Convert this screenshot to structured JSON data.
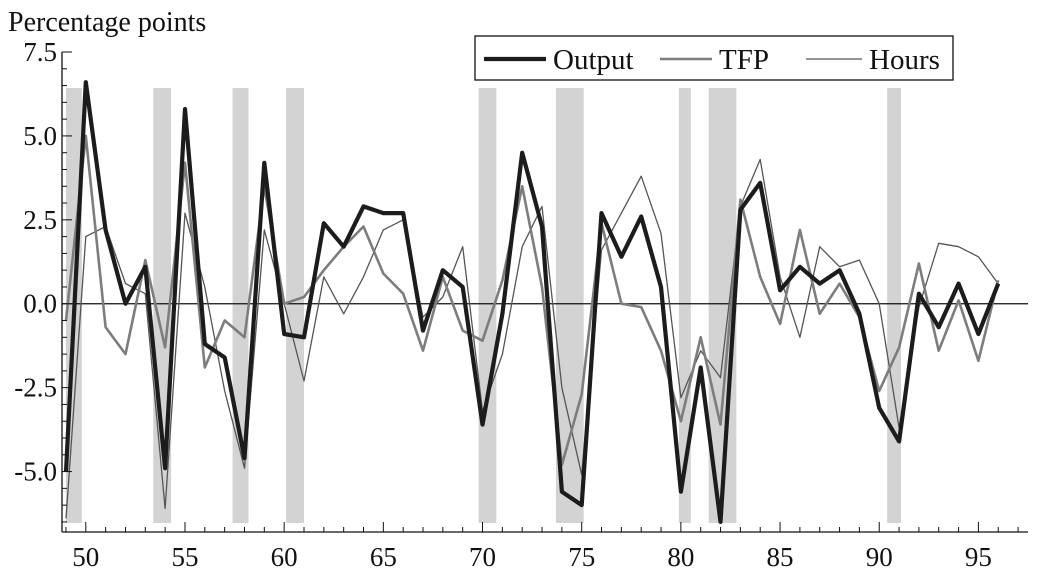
{
  "chart_data": {
    "type": "line",
    "ylabel": "Percentage points",
    "xlim": [
      1948.8,
      1997.5
    ],
    "ylim": [
      -6.8,
      7.5
    ],
    "y_ticks": [
      7.5,
      5.0,
      2.5,
      0.0,
      -2.5,
      -5.0
    ],
    "y_tick_labels": [
      "7.5",
      "5.0",
      "2.5",
      "0.0",
      "-2.5",
      "-5.0"
    ],
    "x_ticks": [
      1950,
      1955,
      1960,
      1965,
      1970,
      1975,
      1980,
      1985,
      1990,
      1995
    ],
    "x_tick_labels": [
      "50",
      "55",
      "60",
      "65",
      "70",
      "75",
      "80",
      "85",
      "90",
      "95"
    ],
    "zero_line": true,
    "grid": false,
    "legend_position": "top-right",
    "recessions": [
      [
        1949.0,
        1949.8
      ],
      [
        1953.4,
        1954.3
      ],
      [
        1957.4,
        1958.2
      ],
      [
        1960.1,
        1961.0
      ],
      [
        1969.8,
        1970.7
      ],
      [
        1973.7,
        1975.1
      ],
      [
        1979.9,
        1980.5
      ],
      [
        1981.4,
        1982.8
      ],
      [
        1990.4,
        1991.1
      ]
    ],
    "x": [
      1949,
      1950,
      1951,
      1952,
      1953,
      1954,
      1955,
      1956,
      1957,
      1958,
      1959,
      1960,
      1961,
      1962,
      1963,
      1964,
      1965,
      1966,
      1967,
      1968,
      1969,
      1970,
      1971,
      1972,
      1973,
      1974,
      1975,
      1976,
      1977,
      1978,
      1979,
      1980,
      1981,
      1982,
      1983,
      1984,
      1985,
      1986,
      1987,
      1988,
      1989,
      1990,
      1991,
      1992,
      1993,
      1994,
      1995,
      1996
    ],
    "series": [
      {
        "name": "Output",
        "color": "#1c1c1c",
        "width": 4.2,
        "values": [
          -5.0,
          6.6,
          2.2,
          0.0,
          1.1,
          -4.9,
          5.8,
          -1.2,
          -1.6,
          -4.6,
          4.2,
          -0.9,
          -1.0,
          2.4,
          1.7,
          2.9,
          2.7,
          2.7,
          -0.8,
          1.0,
          0.5,
          -3.6,
          -0.3,
          4.5,
          2.3,
          -5.6,
          -6.0,
          2.7,
          1.4,
          2.6,
          0.5,
          -5.6,
          -1.9,
          -6.5,
          2.8,
          3.6,
          0.4,
          1.1,
          0.6,
          1.0,
          -0.3,
          -3.1,
          -4.1,
          0.3,
          -0.7,
          0.6,
          -0.9,
          0.6
        ]
      },
      {
        "name": "TFP",
        "color": "#7d7d7d",
        "width": 2.6,
        "values": [
          -0.5,
          5.0,
          -0.7,
          -1.5,
          1.3,
          -1.3,
          4.2,
          -1.9,
          -0.5,
          -1.0,
          3.5,
          0.0,
          0.2,
          1.0,
          1.7,
          2.3,
          0.9,
          0.3,
          -1.4,
          0.8,
          -0.8,
          -1.1,
          0.7,
          3.5,
          0.5,
          -4.8,
          -2.7,
          2.4,
          0.0,
          -0.1,
          -1.4,
          -3.5,
          -1.0,
          -3.6,
          3.1,
          0.8,
          -0.6,
          2.2,
          -0.3,
          0.6,
          -0.4,
          -2.6,
          -1.3,
          1.2,
          -1.4,
          0.1,
          -1.7,
          0.7
        ]
      },
      {
        "name": "Hours",
        "color": "#555555",
        "width": 1.3,
        "values": [
          -6.4,
          2.0,
          2.3,
          0.6,
          0.3,
          -6.1,
          2.7,
          0.5,
          -2.6,
          -4.9,
          2.2,
          0.0,
          -2.3,
          0.8,
          -0.3,
          0.8,
          2.2,
          2.5,
          -0.4,
          0.2,
          1.7,
          -3.2,
          -1.5,
          1.7,
          2.9,
          -2.5,
          -5.1,
          1.6,
          2.7,
          3.8,
          2.1,
          -2.8,
          -1.4,
          -2.2,
          2.9,
          4.3,
          0.8,
          -1.0,
          1.7,
          1.1,
          1.3,
          0.0,
          -3.7,
          -0.1,
          1.8,
          1.7,
          1.4,
          0.6
        ]
      }
    ]
  }
}
